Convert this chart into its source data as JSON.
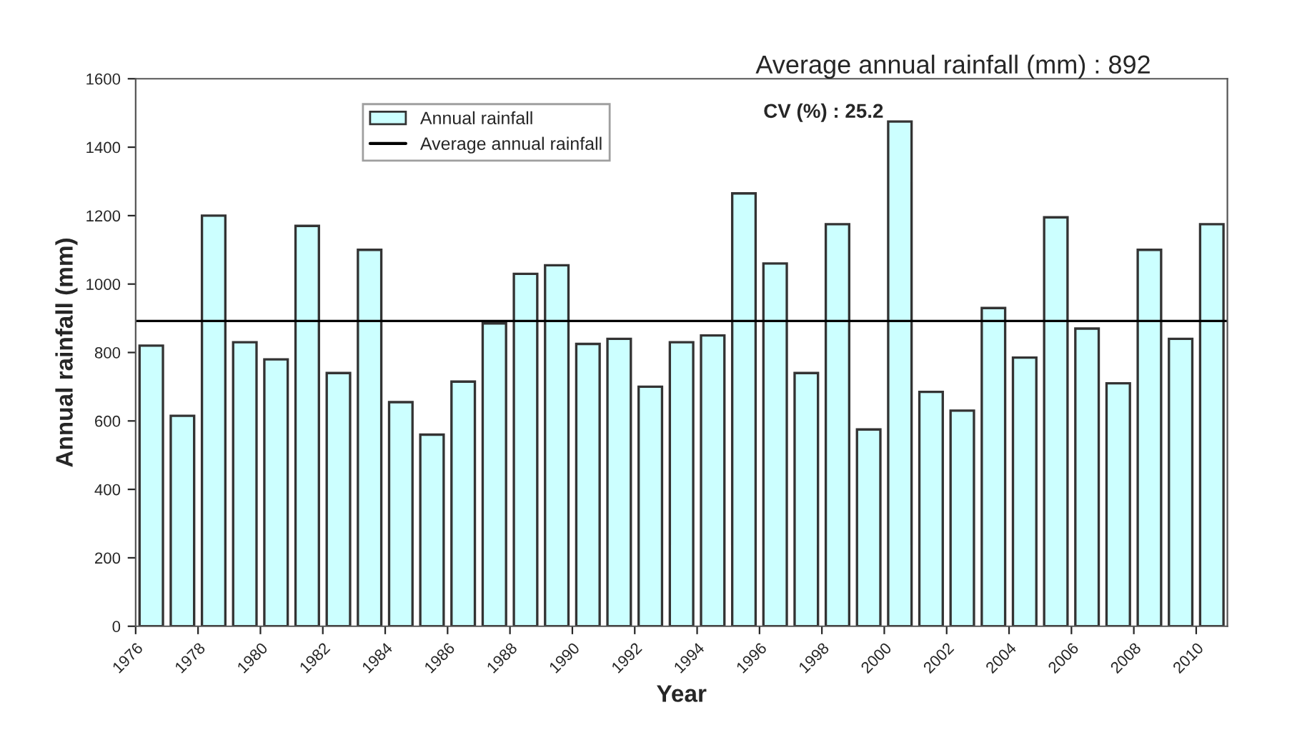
{
  "chart_data": {
    "type": "bar",
    "xlabel": "Year",
    "ylabel": "Annual rainfall (mm)",
    "categories": [
      "1976",
      null,
      "1978",
      null,
      "1980",
      null,
      "1982",
      null,
      "1984",
      null,
      "1986",
      null,
      "1988",
      null,
      "1990",
      null,
      "1992",
      null,
      "1994",
      null,
      "1996",
      null,
      "1998",
      null,
      "2000",
      null,
      "2002",
      null,
      "2004",
      null,
      "2006",
      null,
      "2008",
      null,
      "2010"
    ],
    "series": [
      {
        "name": "Annual rainfall",
        "color": "#ccffff",
        "values": [
          820,
          615,
          1200,
          830,
          780,
          1170,
          740,
          1100,
          655,
          560,
          715,
          885,
          1030,
          1055,
          825,
          840,
          700,
          830,
          850,
          1265,
          1060,
          740,
          1175,
          575,
          1475,
          685,
          630,
          930,
          785,
          1195,
          870,
          710,
          1100,
          840,
          1175
        ]
      }
    ],
    "ref_lines": [
      {
        "axis": "y",
        "value": 892,
        "label": "Average annual rainfall",
        "color": "#000000",
        "line_style": "solid"
      }
    ],
    "annotations": [
      "Average annual rainfall (mm) : 892",
      "CV (%) : 25.2"
    ],
    "ylim": [
      0,
      1600
    ],
    "yticks": [
      0,
      200,
      400,
      600,
      800,
      1000,
      1200,
      1400,
      1600
    ],
    "grid": false,
    "legend": "top left"
  }
}
